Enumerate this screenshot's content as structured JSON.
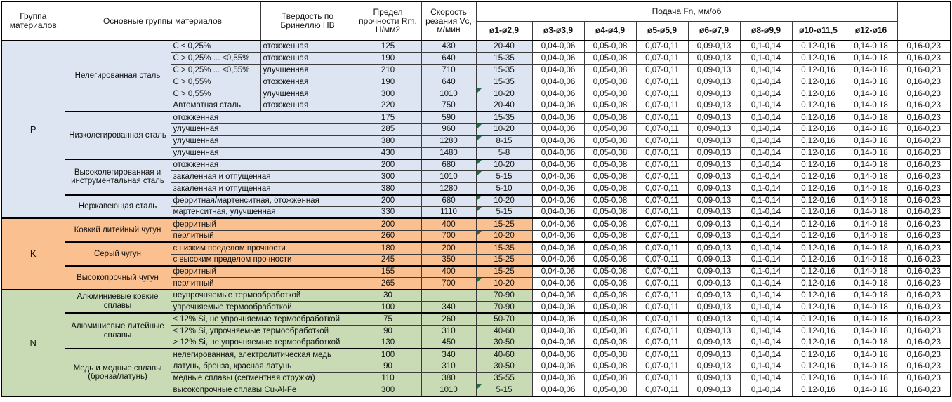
{
  "table": {
    "header": {
      "col_group": "Группа материалов",
      "col_main_groups": "Основные группы материалов",
      "col_hardness": "Твердость по Бринеллю HB",
      "col_strength": "Предел прочности Rm, Н/мм2",
      "col_speed": "Скорость резания Vc, м/мин",
      "feed_title": "Подача Fn, мм/об",
      "feed_cols": [
        "ø1-ø2,9",
        "ø3-ø3,9",
        "ø4-ø4,9",
        "ø5-ø5,9",
        "ø6-ø7,9",
        "ø8-ø9,9",
        "ø10-ø11,5",
        "ø12-ø16"
      ]
    },
    "colors": {
      "P": "#dce5f1",
      "K": "#fac090",
      "N": "#c8dbb5",
      "triangle": "#1e7145"
    },
    "feed_values": [
      "0,04-0,06",
      "0,05-0,08",
      "0,07-0,11",
      "0,09-0,13",
      "0,1-0,14",
      "0,12-0,16",
      "0,14-0,18",
      "0,16-0,23"
    ],
    "groups": [
      {
        "code": "P",
        "material_groups": [
          {
            "name": "Нелегированная сталь",
            "rows": [
              {
                "d1": "C ≤ 0,25%",
                "d2": "отожженная",
                "hb": "125",
                "rm": "430",
                "vc": "20-40",
                "mark": false
              },
              {
                "d1": "C > 0,25% ... ≤0,55%",
                "d2": "отожженная",
                "hb": "190",
                "rm": "640",
                "vc": "15-35",
                "mark": false
              },
              {
                "d1": "C > 0,25% ... ≤0,55%",
                "d2": "улучшенная",
                "hb": "210",
                "rm": "710",
                "vc": "15-35",
                "mark": false
              },
              {
                "d1": "C > 0,55%",
                "d2": "отожженная",
                "hb": "190",
                "rm": "640",
                "vc": "15-35",
                "mark": false
              },
              {
                "d1": "C > 0,55%",
                "d2": "улучшенная",
                "hb": "300",
                "rm": "1010",
                "vc": "10-20",
                "mark": true
              },
              {
                "d1": "Автоматная сталь",
                "d2": "отожженная",
                "hb": "220",
                "rm": "750",
                "vc": "20-40",
                "mark": false
              }
            ]
          },
          {
            "name": "Низколегированная сталь",
            "rows": [
              {
                "d1": "отожженная",
                "d2": null,
                "hb": "175",
                "rm": "590",
                "vc": "15-35",
                "mark": false
              },
              {
                "d1": "улучшенная",
                "d2": null,
                "hb": "285",
                "rm": "960",
                "vc": "10-20",
                "mark": true
              },
              {
                "d1": "улучшенная",
                "d2": null,
                "hb": "380",
                "rm": "1280",
                "vc": "8-15",
                "mark": true
              },
              {
                "d1": "улучшенная",
                "d2": null,
                "hb": "430",
                "rm": "1480",
                "vc": "5-8",
                "mark": false
              }
            ]
          },
          {
            "name": "Высоколегированная и инструментальная сталь",
            "rows": [
              {
                "d1": "отожженная",
                "d2": null,
                "hb": "200",
                "rm": "680",
                "vc": "10-20",
                "mark": true
              },
              {
                "d1": "закаленная и отпущенная",
                "d2": null,
                "hb": "300",
                "rm": "1010",
                "vc": "5-15",
                "mark": true
              },
              {
                "d1": "закаленная и отпущенная",
                "d2": null,
                "hb": "380",
                "rm": "1280",
                "vc": "5-10",
                "mark": false
              }
            ]
          },
          {
            "name": "Нержавеющая сталь",
            "rows": [
              {
                "d1": "ферритная/мартенситная, отожженная",
                "d2": null,
                "hb": "200",
                "rm": "680",
                "vc": "10-20",
                "mark": true
              },
              {
                "d1": "мартенситная, улучшенная",
                "d2": null,
                "hb": "330",
                "rm": "1110",
                "vc": "5-15",
                "mark": true
              }
            ]
          }
        ]
      },
      {
        "code": "K",
        "material_groups": [
          {
            "name": "Ковкий литейный чугун",
            "rows": [
              {
                "d1": "ферритный",
                "d2": null,
                "hb": "200",
                "rm": "400",
                "vc": "15-25",
                "mark": false
              },
              {
                "d1": "перлитный",
                "d2": null,
                "hb": "260",
                "rm": "700",
                "vc": "10-20",
                "mark": true
              }
            ]
          },
          {
            "name": "Серый чугун",
            "rows": [
              {
                "d1": "с низким пределом прочности",
                "d2": null,
                "hb": "180",
                "rm": "200",
                "vc": "15-35",
                "mark": false
              },
              {
                "d1": "с высоким пределом прочности",
                "d2": null,
                "hb": "245",
                "rm": "350",
                "vc": "15-25",
                "mark": false
              }
            ]
          },
          {
            "name": "Высокопрочный чугун",
            "rows": [
              {
                "d1": "ферритный",
                "d2": null,
                "hb": "155",
                "rm": "400",
                "vc": "15-25",
                "mark": false
              },
              {
                "d1": "перлитный",
                "d2": null,
                "hb": "265",
                "rm": "700",
                "vc": "10-20",
                "mark": true
              }
            ]
          }
        ]
      },
      {
        "code": "N",
        "material_groups": [
          {
            "name": "Алюминиевые ковкие сплавы",
            "rows": [
              {
                "d1": "неупрочняемые термообработкой",
                "d2": null,
                "hb": "30",
                "rm": "",
                "vc": "70-90",
                "mark": false
              },
              {
                "d1": "упрочняемые термообработкой",
                "d2": null,
                "hb": "100",
                "rm": "340",
                "vc": "70-90",
                "mark": false
              }
            ]
          },
          {
            "name": "Алюминиевые литейные сплавы",
            "rows": [
              {
                "d1": "≤ 12% Si, не упрочняемые термообработкой",
                "d2": null,
                "hb": "75",
                "rm": "260",
                "vc": "50-70",
                "mark": false
              },
              {
                "d1": "≤ 12% Si, упрочняемые термообработкой",
                "d2": null,
                "hb": "90",
                "rm": "310",
                "vc": "40-60",
                "mark": false
              },
              {
                "d1": "> 12% Si, не упрочняемые термообработкой",
                "d2": null,
                "hb": "130",
                "rm": "450",
                "vc": "30-50",
                "mark": false
              }
            ]
          },
          {
            "name": "Медь и медные сплавы (бронза/латунь)",
            "rows": [
              {
                "d1": "нелегированная, электролитическая медь",
                "d2": null,
                "hb": "100",
                "rm": "340",
                "vc": "40-60",
                "mark": false
              },
              {
                "d1": "латунь, бронза, красная латунь",
                "d2": null,
                "hb": "90",
                "rm": "310",
                "vc": "30-50",
                "mark": false
              },
              {
                "d1": "медные сплавы (сегментная стружка)",
                "d2": null,
                "hb": "110",
                "rm": "380",
                "vc": "35-55",
                "mark": false
              },
              {
                "d1": "высокопрочные сплавы Cu-Al-Fe",
                "d2": null,
                "hb": "300",
                "rm": "1010",
                "vc": "5-15",
                "mark": true
              }
            ]
          }
        ]
      }
    ]
  }
}
